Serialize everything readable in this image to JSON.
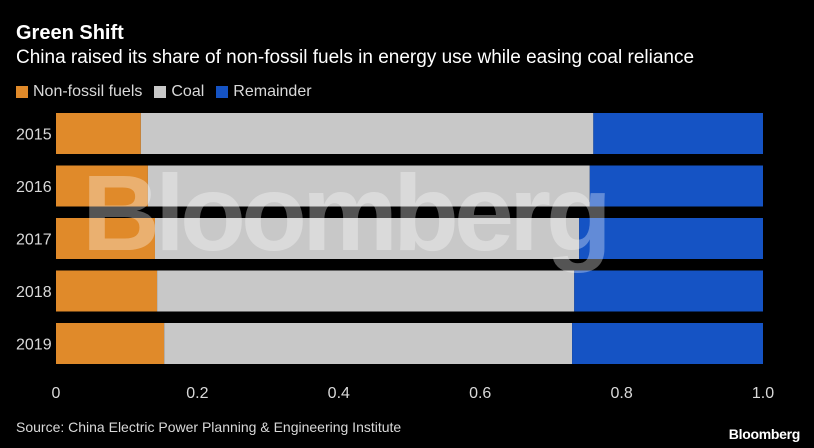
{
  "title": "Green Shift",
  "subtitle": "China raised its share of non-fossil fuels in energy use while easing coal reliance",
  "source": "Source: China Electric Power Planning & Engineering Institute",
  "logo": "Bloomberg",
  "watermark": "Bloomberg",
  "colors": {
    "non_fossil": "#e08a2a",
    "coal": "#c8c8c8",
    "remainder": "#1553c4",
    "background": "#000000"
  },
  "chart_data": {
    "type": "bar",
    "orientation": "horizontal",
    "stacked": true,
    "categories": [
      "2015",
      "2016",
      "2017",
      "2018",
      "2019"
    ],
    "series": [
      {
        "name": "Non-fossil fuels",
        "color": "#e08a2a",
        "values": [
          0.12,
          0.13,
          0.14,
          0.143,
          0.153
        ]
      },
      {
        "name": "Coal",
        "color": "#c8c8c8",
        "values": [
          0.64,
          0.625,
          0.6,
          0.59,
          0.577
        ]
      },
      {
        "name": "Remainder",
        "color": "#1553c4",
        "values": [
          0.24,
          0.245,
          0.26,
          0.267,
          0.27
        ]
      }
    ],
    "xticks": [
      "0",
      "0.2",
      "0.4",
      "0.6",
      "0.8",
      "1.0"
    ],
    "xlim": [
      0,
      1
    ],
    "grid": false,
    "legend_position": "top-left"
  }
}
